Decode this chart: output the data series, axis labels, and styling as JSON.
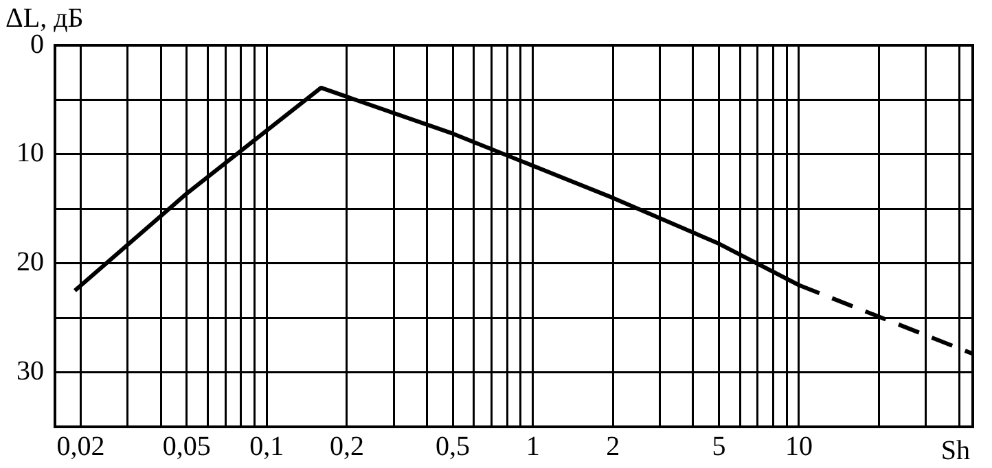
{
  "chart_data": {
    "type": "line",
    "ylabel": "ΔL, дБ",
    "xlabel": "Sh",
    "log": "x",
    "xlim": [
      0.016,
      45
    ],
    "ylim": [
      35,
      0
    ],
    "xticks": [
      {
        "value": 0.02,
        "label": "0,02"
      },
      {
        "value": 0.03,
        "label": null
      },
      {
        "value": 0.04,
        "label": null
      },
      {
        "value": 0.05,
        "label": "0,05"
      },
      {
        "value": 0.06,
        "label": null
      },
      {
        "value": 0.07,
        "label": null
      },
      {
        "value": 0.08,
        "label": null
      },
      {
        "value": 0.09,
        "label": null
      },
      {
        "value": 0.1,
        "label": "0,1"
      },
      {
        "value": 0.2,
        "label": "0,2"
      },
      {
        "value": 0.3,
        "label": null
      },
      {
        "value": 0.4,
        "label": null
      },
      {
        "value": 0.5,
        "label": "0,5"
      },
      {
        "value": 0.6,
        "label": null
      },
      {
        "value": 0.7,
        "label": null
      },
      {
        "value": 0.8,
        "label": null
      },
      {
        "value": 0.9,
        "label": null
      },
      {
        "value": 1,
        "label": "1"
      },
      {
        "value": 2,
        "label": "2"
      },
      {
        "value": 3,
        "label": null
      },
      {
        "value": 4,
        "label": null
      },
      {
        "value": 5,
        "label": "5"
      },
      {
        "value": 6,
        "label": null
      },
      {
        "value": 7,
        "label": null
      },
      {
        "value": 8,
        "label": null
      },
      {
        "value": 9,
        "label": null
      },
      {
        "value": 10,
        "label": "10"
      },
      {
        "value": 20,
        "label": null
      },
      {
        "value": 30,
        "label": null
      },
      {
        "value": 40,
        "label": null
      }
    ],
    "yticks": [
      0,
      {
        "value": 5,
        "label": null
      },
      10,
      {
        "value": 15,
        "label": null
      },
      20,
      {
        "value": 25,
        "label": null
      },
      30
    ],
    "grid": true,
    "marker": "none",
    "series": [
      {
        "color": "#000000",
        "line_style": "solid",
        "x": [
          0.019,
          0.05,
          0.16,
          0.5,
          2,
          5,
          10
        ],
        "values": [
          22.5,
          13.6,
          3.9,
          8.1,
          14,
          18.2,
          22
        ]
      },
      {
        "color": "#000000",
        "line_style": "dashed",
        "x": [
          10,
          45
        ],
        "values": [
          22,
          28.3
        ]
      }
    ]
  }
}
